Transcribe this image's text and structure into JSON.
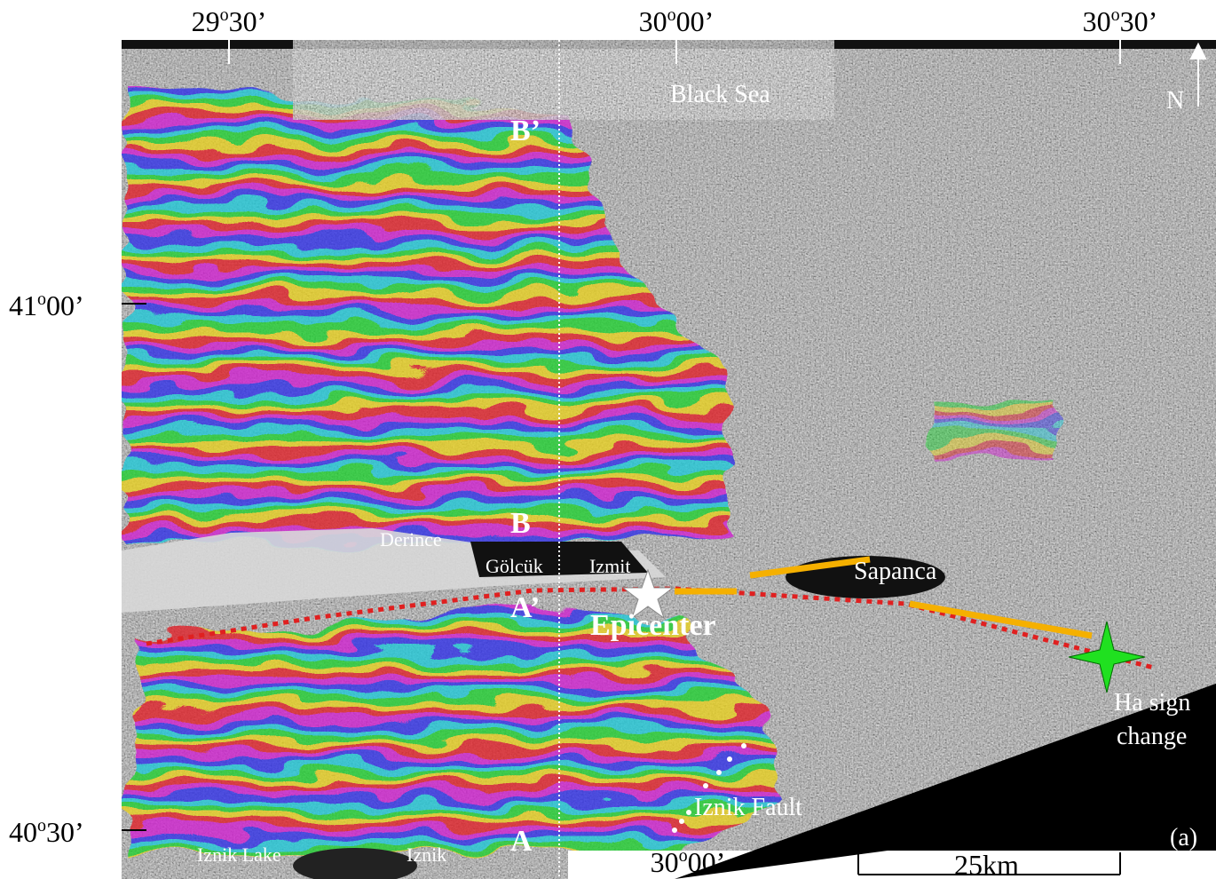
{
  "map": {
    "top_labels": [
      {
        "deg": "29",
        "sym": "o",
        "min": "30’"
      },
      {
        "deg": "30",
        "sym": "o",
        "min": "00’"
      },
      {
        "deg": "30",
        "sym": "o",
        "min": "30’"
      }
    ],
    "left_labels": [
      {
        "deg": "41",
        "sym": "o",
        "min": "00’"
      },
      {
        "deg": "40",
        "sym": "o",
        "min": "30’"
      }
    ],
    "bottom_label": {
      "deg": "30",
      "sym": "o",
      "min": "00’"
    },
    "places": {
      "black_sea": "Black Sea",
      "derince": "Derince",
      "golcuk": "Gölcük",
      "izmit": "Izmit",
      "sapanca": "Sapanca",
      "iznik_lake": "Iznik Lake",
      "iznik": "Iznik",
      "iznik_fault": "Iznik Fault"
    },
    "profiles": {
      "b_prime": "B’",
      "b": "B",
      "a_prime": "A’",
      "a": "A"
    },
    "epicenter": "Epicenter",
    "sign_change": [
      "Ha sign",
      "change"
    ],
    "north": "N",
    "scale": "25km",
    "panel": "(a)"
  }
}
